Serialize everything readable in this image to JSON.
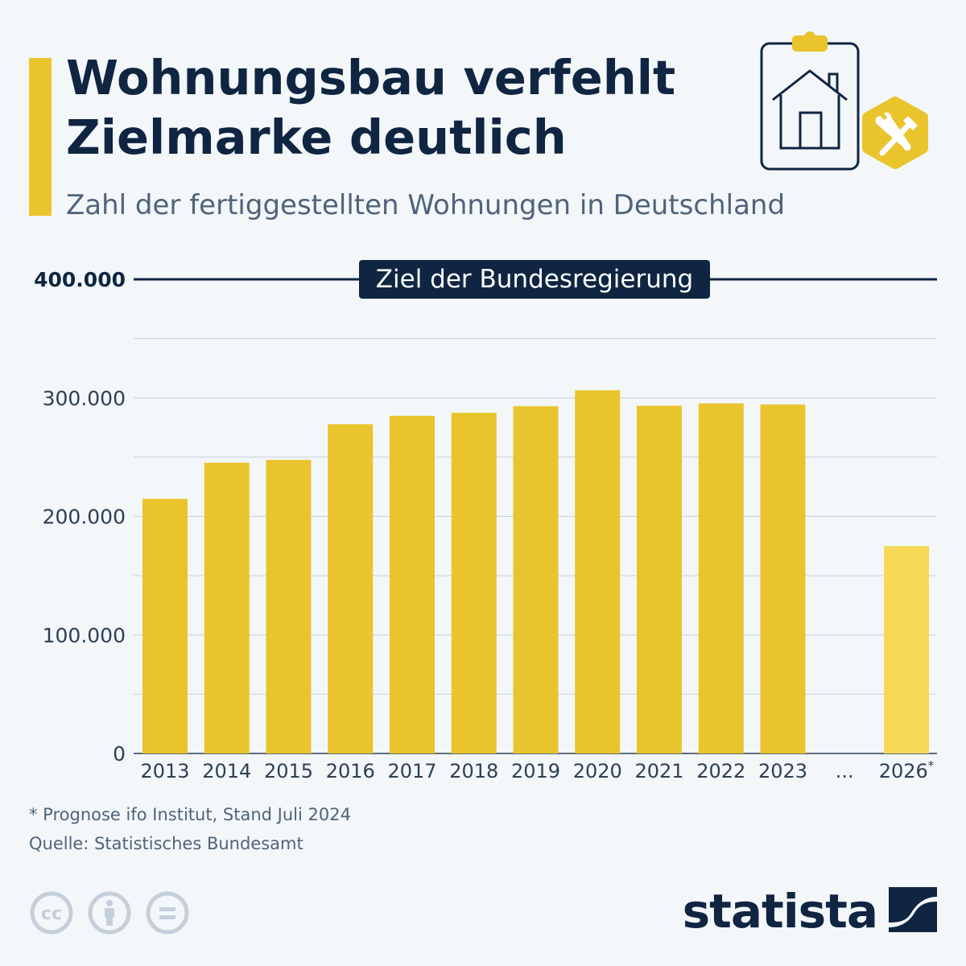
{
  "header": {
    "title_line1": "Wohnungsbau verfehlt",
    "title_line2": "Zielmarke deutlich",
    "subtitle": "Zahl der fertiggestellten Wohnungen in Deutschland"
  },
  "colors": {
    "accent": "#e9c42c",
    "bar": "#e9c42c",
    "bar_forecast": "#f7d957",
    "navy": "#0f2541",
    "muted_text": "#4f637b",
    "grid": "#c9d0d8",
    "background": "#f3f7fa"
  },
  "chart_data": {
    "type": "bar",
    "categories": [
      "2013",
      "2014",
      "2015",
      "2016",
      "2017",
      "2018",
      "2019",
      "2020",
      "2021",
      "2022",
      "2023",
      "...",
      "2026*"
    ],
    "values": [
      214800,
      245300,
      247700,
      277700,
      284800,
      287400,
      293000,
      306400,
      293400,
      295300,
      294400,
      null,
      175000
    ],
    "forecast_categories": [
      "2026*"
    ],
    "ylim": [
      0,
      400000
    ],
    "y_ticks": [
      {
        "value": 0,
        "label": "0"
      },
      {
        "value": 100000,
        "label": "100.000"
      },
      {
        "value": 200000,
        "label": "200.000"
      },
      {
        "value": 300000,
        "label": "300.000"
      },
      {
        "value": 400000,
        "label": "400.000"
      }
    ],
    "grid": true,
    "target": {
      "value": 400000,
      "label": "Ziel der Bundesregierung"
    },
    "xlabel": "",
    "ylabel": ""
  },
  "footer": {
    "note": "* Prognose ifo Institut, Stand Juli 2024",
    "source": "Quelle: Statistisches Bundesamt",
    "brand": "statista",
    "icons": [
      "cc-icon",
      "attribution-icon",
      "no-derivatives-icon"
    ]
  }
}
